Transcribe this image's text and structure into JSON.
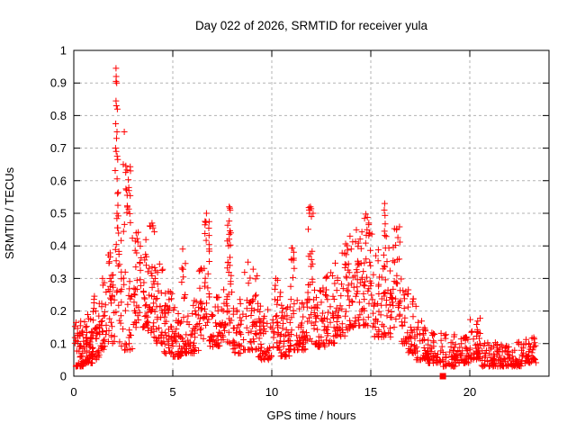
{
  "chart_data": {
    "type": "scatter",
    "title": "Day 022 of 2026, SRMTID for receiver yula",
    "xlabel": "GPS time / hours",
    "ylabel": "SRMTID / TECUs",
    "xlim": [
      0,
      24
    ],
    "ylim": [
      0,
      1
    ],
    "xticks": [
      {
        "v": 0,
        "label": "0"
      },
      {
        "v": 5,
        "label": "5"
      },
      {
        "v": 10,
        "label": "10"
      },
      {
        "v": 15,
        "label": "15"
      },
      {
        "v": 20,
        "label": "20"
      }
    ],
    "yticks": [
      {
        "v": 0,
        "label": "0"
      },
      {
        "v": 0.1,
        "label": "0.1"
      },
      {
        "v": 0.2,
        "label": "0.2"
      },
      {
        "v": 0.3,
        "label": "0.3"
      },
      {
        "v": 0.4,
        "label": "0.4"
      },
      {
        "v": 0.5,
        "label": "0.5"
      },
      {
        "v": 0.6,
        "label": "0.6"
      },
      {
        "v": 0.7,
        "label": "0.7"
      },
      {
        "v": 0.8,
        "label": "0.8"
      },
      {
        "v": 0.9,
        "label": "0.9"
      },
      {
        "v": 1,
        "label": "1"
      }
    ],
    "grid": true,
    "legend": false,
    "marker": {
      "shape": "plus",
      "color": "#ff0000",
      "size": 7
    },
    "colors": {
      "grid": "#b3b3b3",
      "axis": "#000000",
      "text": "#000000",
      "background": "#ffffff"
    },
    "envelope_bins": [
      [
        0.05,
        0.5,
        0.03,
        0.17,
        55,
        2.0
      ],
      [
        0.5,
        0.95,
        0.04,
        0.19,
        50,
        2.0
      ],
      [
        0.95,
        1.3,
        0.05,
        0.25,
        35,
        1.8
      ],
      [
        1.3,
        1.7,
        0.08,
        0.3,
        30,
        1.5
      ],
      [
        1.7,
        2.05,
        0.1,
        0.38,
        30,
        1.3
      ],
      [
        2.05,
        2.3,
        0.12,
        0.66,
        22,
        1.1
      ],
      [
        2.3,
        2.6,
        0.08,
        0.52,
        20,
        1.5
      ],
      [
        2.6,
        2.95,
        0.08,
        0.3,
        18,
        1.8
      ],
      [
        2.62,
        2.88,
        0.45,
        0.67,
        18,
        1.0
      ],
      [
        2.95,
        3.35,
        0.15,
        0.45,
        30,
        1.5
      ],
      [
        3.35,
        3.75,
        0.15,
        0.42,
        30,
        1.6
      ],
      [
        3.75,
        4.1,
        0.12,
        0.47,
        32,
        1.7
      ],
      [
        4.1,
        4.55,
        0.1,
        0.35,
        35,
        1.8
      ],
      [
        4.55,
        5.0,
        0.07,
        0.27,
        40,
        2.0
      ],
      [
        5.0,
        5.45,
        0.06,
        0.22,
        40,
        2.0
      ],
      [
        5.45,
        5.65,
        0.18,
        0.39,
        10,
        1.0
      ],
      [
        5.45,
        5.65,
        0.07,
        0.18,
        10,
        1.5
      ],
      [
        5.65,
        6.3,
        0.07,
        0.24,
        45,
        2.0
      ],
      [
        6.3,
        6.55,
        0.1,
        0.36,
        18,
        1.5
      ],
      [
        6.55,
        6.85,
        0.22,
        0.5,
        22,
        1.1
      ],
      [
        6.55,
        6.85,
        0.1,
        0.22,
        8,
        1.5
      ],
      [
        6.85,
        7.55,
        0.09,
        0.25,
        45,
        1.9
      ],
      [
        7.55,
        7.75,
        0.12,
        0.3,
        12,
        1.5
      ],
      [
        7.75,
        8.0,
        0.2,
        0.52,
        22,
        1.1
      ],
      [
        7.75,
        8.0,
        0.1,
        0.2,
        8,
        1.5
      ],
      [
        8.0,
        8.5,
        0.07,
        0.25,
        35,
        1.9
      ],
      [
        8.5,
        9.3,
        0.08,
        0.33,
        50,
        1.8
      ],
      [
        9.3,
        10.1,
        0.05,
        0.22,
        55,
        2.0
      ],
      [
        10.1,
        10.45,
        0.08,
        0.3,
        25,
        1.6
      ],
      [
        10.45,
        10.9,
        0.06,
        0.22,
        35,
        1.9
      ],
      [
        10.9,
        11.2,
        0.15,
        0.4,
        18,
        1.2
      ],
      [
        10.9,
        11.2,
        0.08,
        0.15,
        10,
        1.5
      ],
      [
        11.2,
        11.75,
        0.08,
        0.25,
        40,
        1.8
      ],
      [
        11.75,
        12.15,
        0.18,
        0.52,
        25,
        1.1
      ],
      [
        11.75,
        12.15,
        0.1,
        0.18,
        10,
        1.5
      ],
      [
        12.15,
        12.7,
        0.09,
        0.28,
        40,
        1.8
      ],
      [
        12.7,
        13.2,
        0.1,
        0.35,
        35,
        1.6
      ],
      [
        13.2,
        13.7,
        0.12,
        0.38,
        35,
        1.5
      ],
      [
        13.7,
        14.15,
        0.14,
        0.43,
        35,
        1.4
      ],
      [
        14.15,
        14.6,
        0.15,
        0.46,
        35,
        1.3
      ],
      [
        14.6,
        15.1,
        0.15,
        0.5,
        40,
        1.3
      ],
      [
        15.1,
        15.55,
        0.12,
        0.4,
        30,
        1.5
      ],
      [
        15.55,
        15.8,
        0.2,
        0.53,
        18,
        1.0
      ],
      [
        15.55,
        15.8,
        0.12,
        0.2,
        8,
        1.5
      ],
      [
        15.8,
        16.15,
        0.12,
        0.4,
        25,
        1.5
      ],
      [
        16.15,
        16.5,
        0.15,
        0.46,
        25,
        1.3
      ],
      [
        16.5,
        16.9,
        0.1,
        0.35,
        25,
        1.6
      ],
      [
        16.9,
        17.3,
        0.07,
        0.25,
        30,
        1.8
      ],
      [
        17.3,
        17.9,
        0.05,
        0.17,
        40,
        2.0
      ],
      [
        17.9,
        18.6,
        0.04,
        0.15,
        45,
        2.0
      ],
      [
        18.6,
        19.3,
        0.03,
        0.13,
        45,
        2.0
      ],
      [
        19.3,
        19.95,
        0.04,
        0.14,
        45,
        2.0
      ],
      [
        19.95,
        20.6,
        0.05,
        0.18,
        45,
        1.8
      ],
      [
        20.6,
        21.3,
        0.03,
        0.11,
        45,
        2.0
      ],
      [
        21.3,
        22.1,
        0.03,
        0.1,
        50,
        2.0
      ],
      [
        22.1,
        22.7,
        0.03,
        0.11,
        40,
        2.0
      ],
      [
        22.7,
        23.35,
        0.04,
        0.12,
        40,
        1.8
      ]
    ],
    "peak_points": [
      [
        2.13,
        0.945
      ],
      [
        2.14,
        0.92
      ],
      [
        2.13,
        0.905
      ],
      [
        2.17,
        0.9
      ],
      [
        2.13,
        0.845
      ],
      [
        2.15,
        0.83
      ],
      [
        2.2,
        0.82
      ],
      [
        2.12,
        0.775
      ],
      [
        2.18,
        0.75
      ],
      [
        2.16,
        0.73
      ],
      [
        2.11,
        0.7
      ],
      [
        2.14,
        0.69
      ],
      [
        2.19,
        0.675
      ],
      [
        2.22,
        0.665
      ],
      [
        2.55,
        0.75
      ],
      [
        2.5,
        0.65
      ],
      [
        1.45,
        0.3
      ],
      [
        3.15,
        0.44
      ],
      [
        3.95,
        0.47
      ],
      [
        4.0,
        0.455
      ],
      [
        5.5,
        0.39
      ],
      [
        6.7,
        0.5
      ],
      [
        7.85,
        0.52
      ],
      [
        7.9,
        0.51
      ],
      [
        8.8,
        0.35
      ],
      [
        10.2,
        0.3
      ],
      [
        11.95,
        0.52
      ],
      [
        11.9,
        0.5
      ],
      [
        12.0,
        0.49
      ],
      [
        14.9,
        0.47
      ],
      [
        15.7,
        0.53
      ],
      [
        15.68,
        0.51
      ],
      [
        16.3,
        0.45
      ]
    ],
    "flagged_point": {
      "t": 18.64,
      "v": 0.0,
      "shape": "filled-square"
    }
  }
}
